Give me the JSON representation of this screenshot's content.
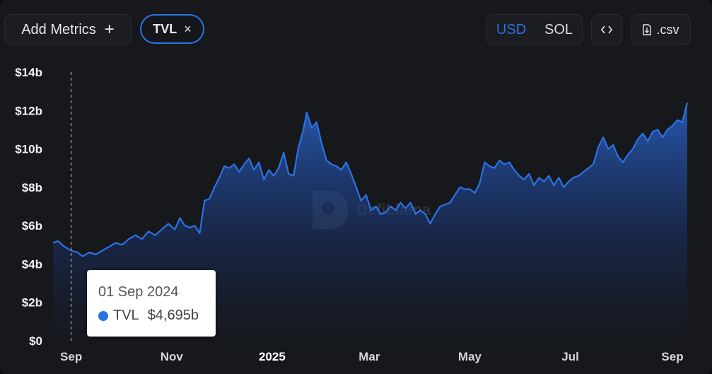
{
  "toolbar": {
    "add_metrics_label": "Add Metrics",
    "add_metrics_icon": "+",
    "metric_chip_label": "TVL",
    "metric_chip_close": "×",
    "currency_usd": "USD",
    "currency_sol": "SOL",
    "embed_icon": "<>",
    "csv_label": ".csv"
  },
  "watermark": "DefiLlama",
  "tooltip": {
    "date": "01 Sep 2024",
    "series": "TVL",
    "value": "$4,695b"
  },
  "colors": {
    "accent": "#2a72e5",
    "line": "#2a72e5"
  },
  "chart_data": {
    "type": "area",
    "title": "",
    "xlabel": "",
    "ylabel": "",
    "ylim": [
      0,
      14
    ],
    "y_unit": "$b",
    "y_tick_labels": [
      "$0",
      "$2b",
      "$4b",
      "$6b",
      "$8b",
      "$10b",
      "$12b",
      "$14b"
    ],
    "y_tick_values": [
      0,
      2,
      4,
      6,
      8,
      10,
      12,
      14
    ],
    "x_tick_labels": [
      "Sep",
      "Nov",
      "2025",
      "Mar",
      "May",
      "Jul",
      "Sep"
    ],
    "x_tick_dates": [
      "2024-09-01",
      "2024-11-01",
      "2025-01-01",
      "2025-03-01",
      "2025-05-01",
      "2025-07-01",
      "2025-09-01"
    ],
    "grid": false,
    "hover_date": "2024-09-01",
    "series": [
      {
        "name": "TVL",
        "points": [
          [
            "2024-08-21",
            5.1
          ],
          [
            "2024-08-24",
            5.2
          ],
          [
            "2024-08-28",
            4.9
          ],
          [
            "2024-09-01",
            4.7
          ],
          [
            "2024-09-05",
            4.6
          ],
          [
            "2024-09-08",
            4.4
          ],
          [
            "2024-09-12",
            4.6
          ],
          [
            "2024-09-16",
            4.5
          ],
          [
            "2024-09-20",
            4.7
          ],
          [
            "2024-09-24",
            4.9
          ],
          [
            "2024-09-28",
            5.1
          ],
          [
            "2024-10-02",
            5.0
          ],
          [
            "2024-10-06",
            5.3
          ],
          [
            "2024-10-10",
            5.5
          ],
          [
            "2024-10-14",
            5.3
          ],
          [
            "2024-10-18",
            5.7
          ],
          [
            "2024-10-22",
            5.5
          ],
          [
            "2024-10-26",
            5.8
          ],
          [
            "2024-10-30",
            6.1
          ],
          [
            "2024-11-03",
            5.8
          ],
          [
            "2024-11-06",
            6.4
          ],
          [
            "2024-11-09",
            6.0
          ],
          [
            "2024-11-12",
            5.9
          ],
          [
            "2024-11-15",
            6.0
          ],
          [
            "2024-11-18",
            5.6
          ],
          [
            "2024-11-21",
            7.3
          ],
          [
            "2024-11-24",
            7.4
          ],
          [
            "2024-11-27",
            8.0
          ],
          [
            "2024-11-30",
            8.5
          ],
          [
            "2024-12-03",
            9.1
          ],
          [
            "2024-12-06",
            9.0
          ],
          [
            "2024-12-09",
            9.2
          ],
          [
            "2024-12-12",
            8.8
          ],
          [
            "2024-12-15",
            9.2
          ],
          [
            "2024-12-18",
            9.5
          ],
          [
            "2024-12-21",
            8.9
          ],
          [
            "2024-12-24",
            9.3
          ],
          [
            "2024-12-27",
            8.4
          ],
          [
            "2024-12-30",
            8.9
          ],
          [
            "2025-01-02",
            8.6
          ],
          [
            "2025-01-05",
            9.0
          ],
          [
            "2025-01-08",
            9.8
          ],
          [
            "2025-01-11",
            8.7
          ],
          [
            "2025-01-14",
            8.6
          ],
          [
            "2025-01-17",
            10.1
          ],
          [
            "2025-01-20",
            11.0
          ],
          [
            "2025-01-22",
            11.9
          ],
          [
            "2025-01-25",
            11.1
          ],
          [
            "2025-01-28",
            11.4
          ],
          [
            "2025-01-31",
            10.3
          ],
          [
            "2025-02-03",
            9.4
          ],
          [
            "2025-02-06",
            9.2
          ],
          [
            "2025-02-09",
            9.1
          ],
          [
            "2025-02-12",
            8.9
          ],
          [
            "2025-02-15",
            9.3
          ],
          [
            "2025-02-18",
            8.7
          ],
          [
            "2025-02-21",
            8.0
          ],
          [
            "2025-02-24",
            7.3
          ],
          [
            "2025-02-27",
            7.6
          ],
          [
            "2025-03-02",
            6.8
          ],
          [
            "2025-03-05",
            7.0
          ],
          [
            "2025-03-08",
            6.6
          ],
          [
            "2025-03-11",
            6.7
          ],
          [
            "2025-03-14",
            7.0
          ],
          [
            "2025-03-17",
            6.8
          ],
          [
            "2025-03-20",
            7.2
          ],
          [
            "2025-03-23",
            6.9
          ],
          [
            "2025-03-26",
            7.2
          ],
          [
            "2025-03-29",
            6.6
          ],
          [
            "2025-04-01",
            6.8
          ],
          [
            "2025-04-04",
            6.6
          ],
          [
            "2025-04-07",
            6.1
          ],
          [
            "2025-04-10",
            6.6
          ],
          [
            "2025-04-13",
            7.0
          ],
          [
            "2025-04-16",
            7.1
          ],
          [
            "2025-04-19",
            7.2
          ],
          [
            "2025-04-22",
            7.6
          ],
          [
            "2025-04-25",
            8.0
          ],
          [
            "2025-04-28",
            7.9
          ],
          [
            "2025-05-01",
            7.9
          ],
          [
            "2025-05-04",
            7.7
          ],
          [
            "2025-05-07",
            8.2
          ],
          [
            "2025-05-10",
            9.3
          ],
          [
            "2025-05-13",
            9.1
          ],
          [
            "2025-05-16",
            9.0
          ],
          [
            "2025-05-19",
            9.4
          ],
          [
            "2025-05-22",
            9.2
          ],
          [
            "2025-05-25",
            9.3
          ],
          [
            "2025-05-28",
            8.9
          ],
          [
            "2025-05-31",
            8.6
          ],
          [
            "2025-06-03",
            8.4
          ],
          [
            "2025-06-06",
            8.7
          ],
          [
            "2025-06-09",
            8.1
          ],
          [
            "2025-06-12",
            8.5
          ],
          [
            "2025-06-15",
            8.3
          ],
          [
            "2025-06-18",
            8.6
          ],
          [
            "2025-06-21",
            8.1
          ],
          [
            "2025-06-24",
            8.5
          ],
          [
            "2025-06-27",
            8.0
          ],
          [
            "2025-06-30",
            8.3
          ],
          [
            "2025-07-03",
            8.5
          ],
          [
            "2025-07-06",
            8.6
          ],
          [
            "2025-07-09",
            8.8
          ],
          [
            "2025-07-12",
            9.0
          ],
          [
            "2025-07-15",
            9.2
          ],
          [
            "2025-07-18",
            10.1
          ],
          [
            "2025-07-21",
            10.6
          ],
          [
            "2025-07-24",
            10.0
          ],
          [
            "2025-07-27",
            10.2
          ],
          [
            "2025-07-30",
            9.6
          ],
          [
            "2025-08-02",
            9.3
          ],
          [
            "2025-08-05",
            9.7
          ],
          [
            "2025-08-08",
            10.0
          ],
          [
            "2025-08-11",
            10.5
          ],
          [
            "2025-08-14",
            10.8
          ],
          [
            "2025-08-17",
            10.4
          ],
          [
            "2025-08-20",
            10.9
          ],
          [
            "2025-08-23",
            11.0
          ],
          [
            "2025-08-26",
            10.6
          ],
          [
            "2025-08-29",
            11.0
          ],
          [
            "2025-09-01",
            11.2
          ],
          [
            "2025-09-04",
            11.5
          ],
          [
            "2025-09-07",
            11.4
          ],
          [
            "2025-09-10",
            12.4
          ]
        ]
      }
    ]
  }
}
